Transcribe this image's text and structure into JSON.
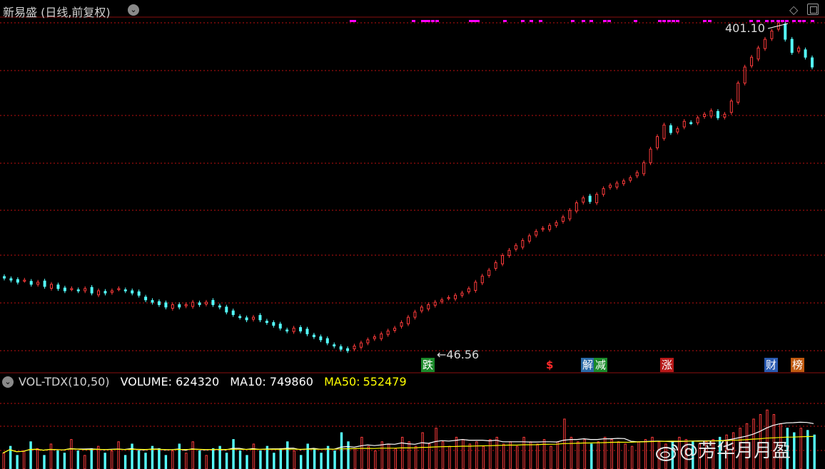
{
  "header": {
    "title": "新易盛 (日线,前复权)"
  },
  "annotations": {
    "high_label": "401.10",
    "low_label": "46.56"
  },
  "event_tags": [
    {
      "label": "跌",
      "color": "#1a8a2a"
    },
    {
      "label": "$",
      "color": "#cc1111"
    },
    {
      "label": "解",
      "color": "#2a6aa8"
    },
    {
      "label": "减",
      "color": "#1a8a2a"
    },
    {
      "label": "涨",
      "color": "#b81818"
    },
    {
      "label": "财",
      "color": "#2a5ab0"
    },
    {
      "label": "榜",
      "color": "#c05a10"
    }
  ],
  "volume_panel": {
    "indicator": "VOL-TDX(10,50)",
    "volume_text": "VOLUME: 624320",
    "ma10_text": "MA10: 749860",
    "ma50_label": "MA50:",
    "ma50_value": "552479"
  },
  "watermark": "@芳华月月盈",
  "colors": {
    "up": "#ff3b3b",
    "down": "#54ffff",
    "grid": "#c01010",
    "ma10": "#ffffff",
    "ma50": "#ffff00",
    "marker": "#ff00ff"
  },
  "chart_data": {
    "type": "candlestick",
    "price_high": 401.1,
    "price_low": 46.56,
    "close_series": [
      75,
      74,
      73,
      74,
      72,
      73,
      71,
      72,
      70,
      69,
      70,
      69,
      70,
      68,
      69,
      68,
      69,
      70,
      69,
      68,
      67,
      65,
      64,
      63,
      62,
      63,
      62,
      63,
      64,
      63,
      64,
      63,
      62,
      60,
      59,
      58,
      57,
      58,
      57,
      56,
      55,
      54,
      53,
      54,
      53,
      52,
      51,
      50,
      49,
      48,
      47,
      46.56,
      48,
      49,
      50,
      51,
      52,
      53,
      54,
      56,
      58,
      60,
      62,
      63,
      64,
      65,
      66,
      67,
      68,
      70,
      73,
      76,
      79,
      83,
      87,
      90,
      93,
      96,
      99,
      102,
      104,
      106,
      108,
      112,
      117,
      123,
      127,
      124,
      130,
      135,
      138,
      140,
      142,
      145,
      150,
      160,
      175,
      190,
      205,
      195,
      200,
      210,
      208,
      215,
      220,
      225,
      215,
      220,
      240,
      270,
      300,
      320,
      340,
      360,
      380,
      401.1,
      360,
      330,
      340,
      320,
      300
    ],
    "volume_series": [
      0.35,
      0.5,
      0.3,
      0.4,
      0.6,
      0.45,
      0.3,
      0.55,
      0.4,
      0.35,
      0.65,
      0.4,
      0.3,
      0.45,
      0.5,
      0.35,
      0.4,
      0.6,
      0.3,
      0.55,
      0.4,
      0.35,
      0.5,
      0.45,
      0.3,
      0.4,
      0.55,
      0.35,
      0.6,
      0.4,
      0.3,
      0.45,
      0.5,
      0.35,
      0.65,
      0.4,
      0.3,
      0.55,
      0.4,
      0.5,
      0.35,
      0.45,
      0.6,
      0.4,
      0.3,
      0.55,
      0.45,
      0.35,
      0.5,
      0.4,
      0.8,
      0.6,
      0.45,
      0.7,
      0.5,
      0.4,
      0.6,
      0.55,
      0.45,
      0.7,
      0.6,
      0.5,
      0.8,
      0.55,
      0.9,
      0.6,
      0.5,
      0.7,
      0.65,
      0.55,
      0.6,
      0.5,
      0.65,
      0.7,
      0.55,
      0.6,
      0.5,
      0.7,
      0.6,
      0.55,
      0.65,
      0.5,
      0.6,
      1.1,
      0.7,
      0.6,
      0.65,
      0.55,
      0.6,
      0.7,
      0.65,
      0.6,
      0.55,
      0.5,
      0.6,
      0.65,
      0.7,
      0.6,
      0.55,
      0.6,
      0.7,
      0.65,
      0.6,
      0.55,
      0.6,
      0.65,
      0.7,
      0.75,
      0.8,
      0.9,
      1.0,
      1.1,
      1.2,
      1.3,
      1.2,
      1.0,
      0.9,
      0.8,
      0.9,
      0.85,
      0.75
    ]
  }
}
